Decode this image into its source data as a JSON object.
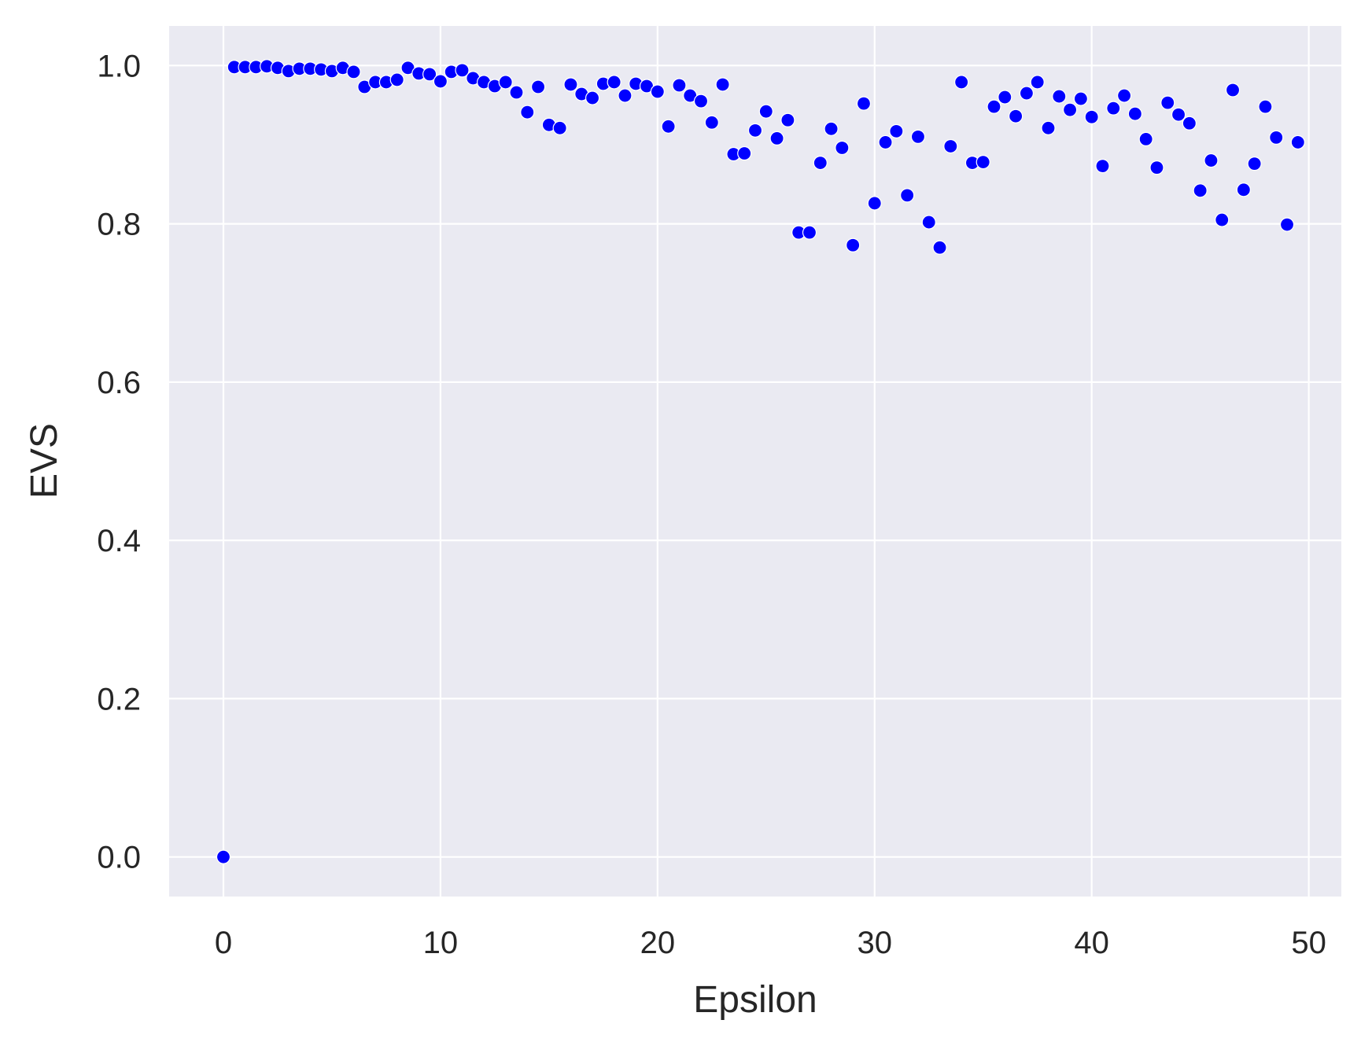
{
  "chart_data": {
    "type": "scatter",
    "title": "",
    "xlabel": "Epsilon",
    "ylabel": "EVS",
    "xlim": [
      -2.5,
      51.5
    ],
    "ylim": [
      -0.05,
      1.05
    ],
    "xticks": [
      0,
      10,
      20,
      30,
      40,
      50
    ],
    "yticks": [
      0.0,
      0.2,
      0.4,
      0.6,
      0.8,
      1.0
    ],
    "xtick_labels": [
      "0",
      "10",
      "20",
      "30",
      "40",
      "50"
    ],
    "ytick_labels": [
      "0.0",
      "0.2",
      "0.4",
      "0.6",
      "0.8",
      "1.0"
    ],
    "grid": true,
    "background_color": "#EAEAF2",
    "grid_color": "#FFFFFF",
    "marker_color": "#0000FF",
    "marker_edge_color": "#FFFFFF",
    "series": [
      {
        "x": [
          0.0,
          0.5,
          1.0,
          1.5,
          2.0,
          2.5,
          3.0,
          3.5,
          4.0,
          4.5,
          5.0,
          5.5,
          6.0,
          6.5,
          7.0,
          7.5,
          8.0,
          8.5,
          9.0,
          9.5,
          10.0,
          10.5,
          11.0,
          11.5,
          12.0,
          12.5,
          13.0,
          13.5,
          14.0,
          14.5,
          15.0,
          15.5,
          16.0,
          16.5,
          17.0,
          17.5,
          18.0,
          18.5,
          19.0,
          19.5,
          20.0,
          20.5,
          21.0,
          21.5,
          22.0,
          22.5,
          23.0,
          23.5,
          24.0,
          24.5,
          25.0,
          25.5,
          26.0,
          26.5,
          27.0,
          27.5,
          28.0,
          28.5,
          29.0,
          29.5,
          30.0,
          30.5,
          31.0,
          31.5,
          32.0,
          32.5,
          33.0,
          33.5,
          34.0,
          34.5,
          35.0,
          35.5,
          36.0,
          36.5,
          37.0,
          37.5,
          38.0,
          38.5,
          39.0,
          39.5,
          40.0,
          40.5,
          41.0,
          41.5,
          42.0,
          42.5,
          43.0,
          43.5,
          44.0,
          44.5,
          45.0,
          45.5,
          46.0,
          46.5,
          47.0,
          47.5,
          48.0,
          48.5,
          49.0,
          49.5
        ],
        "y": [
          0.0,
          0.998,
          0.998,
          0.998,
          0.999,
          0.997,
          0.993,
          0.996,
          0.996,
          0.995,
          0.993,
          0.997,
          0.992,
          0.973,
          0.979,
          0.979,
          0.982,
          0.997,
          0.99,
          0.989,
          0.98,
          0.992,
          0.994,
          0.984,
          0.979,
          0.974,
          0.979,
          0.966,
          0.941,
          0.973,
          0.925,
          0.921,
          0.976,
          0.964,
          0.959,
          0.977,
          0.979,
          0.962,
          0.977,
          0.974,
          0.967,
          0.923,
          0.975,
          0.962,
          0.955,
          0.928,
          0.976,
          0.888,
          0.889,
          0.918,
          0.942,
          0.908,
          0.931,
          0.789,
          0.789,
          0.877,
          0.92,
          0.896,
          0.773,
          0.952,
          0.826,
          0.903,
          0.917,
          0.836,
          0.91,
          0.802,
          0.77,
          0.898,
          0.979,
          0.877,
          0.878,
          0.948,
          0.96,
          0.936,
          0.965,
          0.979,
          0.921,
          0.961,
          0.944,
          0.958,
          0.935,
          0.873,
          0.946,
          0.962,
          0.939,
          0.907,
          0.871,
          0.953,
          0.938,
          0.927,
          0.842,
          0.88,
          0.805,
          0.969,
          0.843,
          0.876,
          0.948,
          0.909,
          0.799,
          0.903
        ]
      }
    ]
  }
}
